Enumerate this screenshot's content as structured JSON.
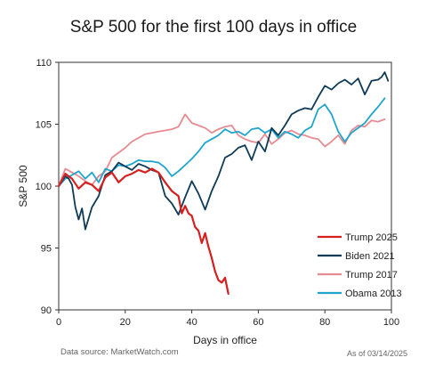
{
  "chart_data": {
    "type": "line",
    "title": "S&P 500 for the first 100 days in office",
    "xlabel": "Days in office",
    "ylabel": "S&P 500",
    "xlim": [
      0,
      100
    ],
    "ylim": [
      90,
      110
    ],
    "xticks": [
      "0",
      "20",
      "40",
      "60",
      "80",
      "100"
    ],
    "yticks": [
      "90",
      "95",
      "100",
      "105",
      "110"
    ],
    "grid": false,
    "legend_position": "bottom-right",
    "series": [
      {
        "name": "Trump 2025",
        "color": "#d61f1f",
        "x": [
          0,
          2,
          4,
          6,
          8,
          10,
          12,
          14,
          16,
          18,
          20,
          22,
          24,
          26,
          28,
          30,
          32,
          34,
          36,
          37,
          38,
          39,
          40,
          41,
          42,
          43,
          44,
          45,
          46,
          47,
          48,
          49,
          50,
          51
        ],
        "y": [
          100,
          101,
          100.6,
          99.8,
          100.3,
          100.1,
          99.6,
          100.7,
          101.1,
          100.3,
          100.8,
          101,
          101.3,
          101.1,
          101.4,
          101.1,
          100.3,
          99.6,
          99.2,
          97.8,
          98.4,
          97.8,
          97.6,
          96.7,
          96.4,
          95.4,
          96.2,
          95.1,
          94.2,
          93.1,
          92.4,
          92.2,
          92.6,
          91.3
        ]
      },
      {
        "name": "Biden 2021",
        "color": "#0f3b57",
        "x": [
          0,
          2,
          3,
          4,
          5,
          6,
          7,
          8,
          10,
          12,
          14,
          16,
          18,
          20,
          22,
          24,
          26,
          28,
          30,
          32,
          34,
          36,
          38,
          40,
          42,
          44,
          46,
          48,
          50,
          52,
          54,
          56,
          58,
          60,
          62,
          64,
          66,
          68,
          70,
          72,
          74,
          76,
          78,
          80,
          82,
          84,
          86,
          88,
          90,
          92,
          94,
          96,
          97,
          98,
          99
        ],
        "y": [
          100,
          100.8,
          100.6,
          100.1,
          98.3,
          97.3,
          98.2,
          96.5,
          98.3,
          99.2,
          100.9,
          101.2,
          101.9,
          101.6,
          101.3,
          101.8,
          101.6,
          101.3,
          101.1,
          99.2,
          98.6,
          97.7,
          99.1,
          100.4,
          99.4,
          98.1,
          99.6,
          100.8,
          102.3,
          102.6,
          103.1,
          103.3,
          102.1,
          103.6,
          102.8,
          104.7,
          104.1,
          104.9,
          105.8,
          106.1,
          106.3,
          106.2,
          107.2,
          108.1,
          107.8,
          108.3,
          108.6,
          108.2,
          108.7,
          107.4,
          108.5,
          108.6,
          108.8,
          109.2,
          108.5
        ]
      },
      {
        "name": "Trump 2017",
        "color": "#e78b92",
        "x": [
          0,
          2,
          4,
          6,
          8,
          10,
          12,
          14,
          16,
          18,
          20,
          22,
          24,
          26,
          28,
          30,
          32,
          34,
          36,
          38,
          40,
          42,
          44,
          46,
          48,
          50,
          52,
          54,
          56,
          58,
          60,
          62,
          64,
          66,
          68,
          70,
          72,
          74,
          76,
          78,
          80,
          82,
          84,
          86,
          88,
          90,
          92,
          94,
          96,
          98
        ],
        "y": [
          100,
          101.4,
          101.1,
          100.8,
          100.4,
          100.1,
          100.8,
          101.2,
          102.3,
          102.7,
          103.1,
          103.6,
          103.9,
          104.2,
          104.3,
          104.4,
          104.5,
          104.6,
          104.8,
          105.8,
          105.1,
          104.9,
          104.7,
          104.3,
          104.6,
          104.8,
          104.9,
          104.1,
          103.8,
          103.6,
          103.5,
          104.2,
          103.4,
          103.8,
          104.3,
          104.5,
          104.2,
          104.1,
          103.9,
          103.8,
          103.2,
          103.6,
          104.1,
          103.4,
          104.5,
          104.9,
          104.8,
          105.3,
          105.2,
          105.4
        ]
      },
      {
        "name": "Obama 2013",
        "color": "#1fa5cb",
        "x": [
          0,
          2,
          4,
          6,
          8,
          10,
          12,
          14,
          16,
          18,
          20,
          22,
          24,
          26,
          28,
          30,
          32,
          34,
          36,
          38,
          40,
          42,
          44,
          46,
          48,
          50,
          52,
          54,
          56,
          58,
          60,
          62,
          64,
          66,
          68,
          70,
          72,
          74,
          76,
          78,
          80,
          82,
          84,
          86,
          88,
          90,
          92,
          94,
          96,
          98
        ],
        "y": [
          100,
          100.6,
          100.9,
          101.2,
          100.6,
          101.1,
          100.3,
          101.4,
          101.2,
          101.7,
          101.6,
          101.8,
          102.1,
          102,
          102,
          101.9,
          101.5,
          100.8,
          101.2,
          101.7,
          102.2,
          102.8,
          103.5,
          103.8,
          104.1,
          104.6,
          104.3,
          104.4,
          104.1,
          104.6,
          104.7,
          104.3,
          104.6,
          103.9,
          104.4,
          104.2,
          103.9,
          104.5,
          104.8,
          106.2,
          106.6,
          105.8,
          104.4,
          103.6,
          104.3,
          104.7,
          105.1,
          105.8,
          106.4,
          107.1
        ]
      }
    ]
  },
  "notes": {
    "source": "Data source: MarketWatch.com",
    "date": "As of 03/14/2025"
  }
}
